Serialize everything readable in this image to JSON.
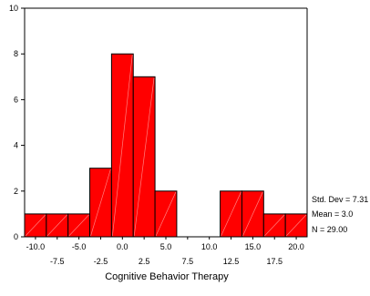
{
  "chart_data": {
    "type": "bar",
    "subtype": "histogram",
    "xlabel": "Cognitive Behavior Therapy",
    "ylabel": "",
    "bin_width": 2.5,
    "bins": [
      {
        "center": -10.0,
        "count": 1
      },
      {
        "center": -7.5,
        "count": 1
      },
      {
        "center": -5.0,
        "count": 1
      },
      {
        "center": -2.5,
        "count": 3
      },
      {
        "center": 0.0,
        "count": 8
      },
      {
        "center": 2.5,
        "count": 7
      },
      {
        "center": 5.0,
        "count": 2
      },
      {
        "center": 7.5,
        "count": 0
      },
      {
        "center": 10.0,
        "count": 0
      },
      {
        "center": 12.5,
        "count": 2
      },
      {
        "center": 15.0,
        "count": 2
      },
      {
        "center": 17.5,
        "count": 1
      },
      {
        "center": 20.0,
        "count": 1
      }
    ],
    "xlim": [
      -11.25,
      21.25
    ],
    "ylim": [
      0,
      10
    ],
    "x_ticks_lower": [
      "-10.0",
      "-5.0",
      "0.0",
      "5.0",
      "10.0",
      "15.0",
      "20.0"
    ],
    "x_ticks_upper": [
      "-7.5",
      "-2.5",
      "2.5",
      "7.5",
      "12.5",
      "17.5"
    ],
    "y_ticks": [
      "0",
      "2",
      "4",
      "6",
      "8",
      "10"
    ],
    "bar_color": "#ff0000",
    "grid": false,
    "stats": {
      "std_dev": "Std. Dev = 7.31",
      "mean": "Mean = 3.0",
      "n": "N = 29.00"
    }
  }
}
